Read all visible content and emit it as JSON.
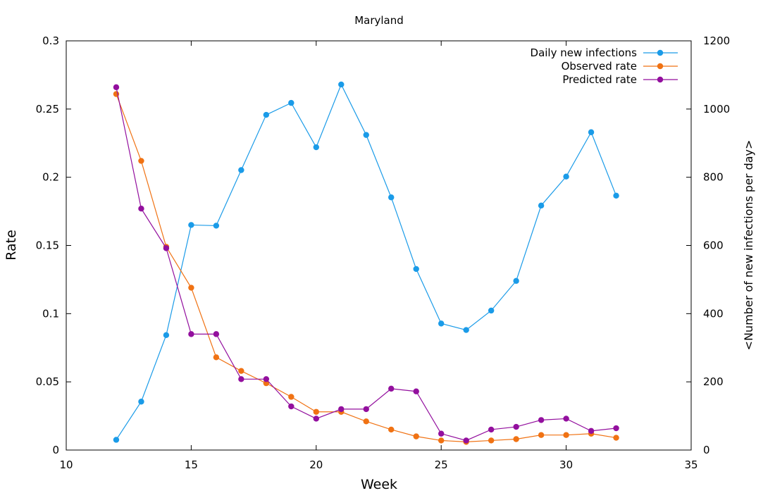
{
  "chart_data": {
    "type": "line",
    "title": "Maryland",
    "xlabel": "Week",
    "ylabel": "Rate",
    "y2label": "<Number of new infections per day>",
    "xlim": [
      10,
      35
    ],
    "ylim": [
      0,
      0.3
    ],
    "y2lim": [
      0,
      1200
    ],
    "x_ticks": [
      "10",
      "15",
      "20",
      "25",
      "30",
      "35"
    ],
    "y_ticks": [
      "0",
      "0.05",
      "0.1",
      "0.15",
      "0.2",
      "0.25",
      "0.3"
    ],
    "y2_ticks": [
      "0",
      "200",
      "400",
      "600",
      "800",
      "1000",
      "1200"
    ],
    "legend_position": "top-right",
    "grid": false,
    "x": [
      12,
      13,
      14,
      15,
      16,
      17,
      18,
      19,
      20,
      21,
      22,
      23,
      24,
      25,
      26,
      27,
      28,
      29,
      30,
      31,
      32
    ],
    "series": [
      {
        "name": "Daily new infections",
        "axis": "y2",
        "color": "#1a9be8",
        "values": [
          30,
          142,
          337,
          660,
          658,
          821,
          983,
          1018,
          888,
          1072,
          924,
          741,
          531,
          371,
          352,
          409,
          496,
          717,
          802,
          932,
          746
        ]
      },
      {
        "name": "Observed rate",
        "axis": "y",
        "color": "#f07213",
        "values": [
          0.261,
          0.212,
          0.149,
          0.119,
          0.068,
          0.058,
          0.049,
          0.039,
          0.028,
          0.028,
          0.021,
          0.015,
          0.01,
          0.007,
          0.006,
          0.007,
          0.008,
          0.011,
          0.011,
          0.012,
          0.009
        ]
      },
      {
        "name": "Predicted rate",
        "axis": "y",
        "color": "#930f9e",
        "values": [
          0.266,
          0.177,
          0.148,
          0.085,
          0.085,
          0.052,
          0.052,
          0.032,
          0.023,
          0.03,
          0.03,
          0.045,
          0.043,
          0.012,
          0.007,
          0.015,
          0.017,
          0.022,
          0.023,
          0.014,
          0.016
        ]
      }
    ]
  }
}
